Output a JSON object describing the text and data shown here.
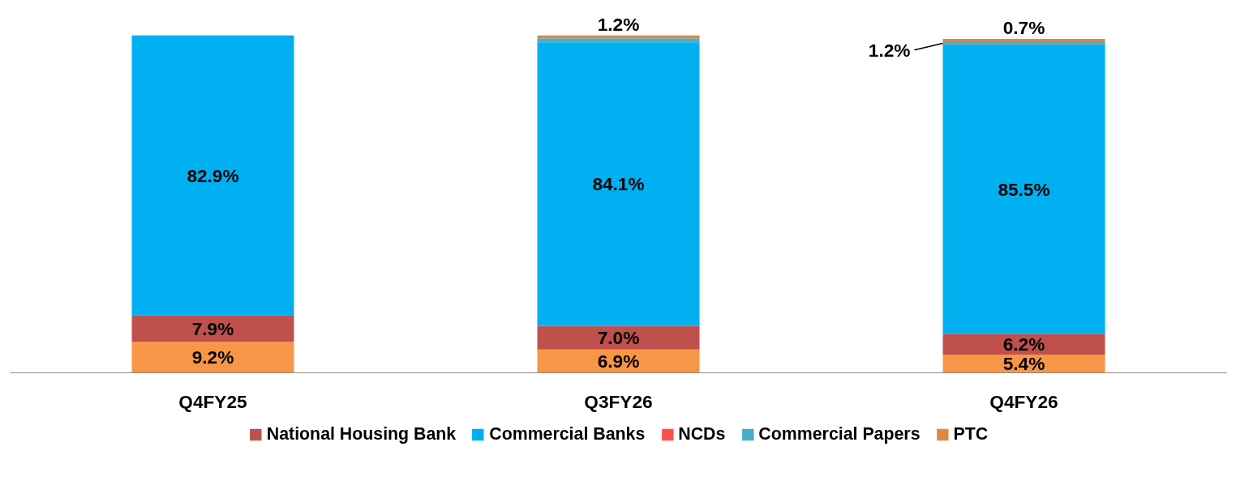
{
  "chart_data": {
    "type": "bar",
    "stacked": true,
    "categories": [
      "Q4FY25",
      "Q3FY26",
      "Q4FY26"
    ],
    "series": [
      {
        "color": "#f79646",
        "values": [
          9.2,
          6.9,
          5.4
        ],
        "value_labels": [
          "9.2%",
          "6.9%",
          "5.4%"
        ]
      },
      {
        "name": "National Housing Bank",
        "color": "#c0504d",
        "values": [
          7.9,
          7.0,
          6.2
        ],
        "value_labels": [
          "7.9%",
          "7.0%",
          "6.2%"
        ]
      },
      {
        "name": "Commercial Banks",
        "color": "#00b0f0",
        "values": [
          82.9,
          84.1,
          85.5
        ],
        "value_labels": [
          "82.9%",
          "84.1%",
          "85.5%"
        ]
      },
      {
        "name": "NCDs",
        "color": "#ff5050",
        "values": [
          null,
          null,
          null
        ],
        "value_labels": [
          null,
          null,
          null
        ]
      },
      {
        "name": "Commercial Papers",
        "color": "#4bacc6",
        "values": [
          null,
          1.2,
          1.2
        ],
        "value_labels": [
          null,
          "1.2%",
          "1.2%"
        ]
      },
      {
        "name": "PTC",
        "color": "#e0883c",
        "values": [
          null,
          0.8,
          0.7
        ],
        "value_labels": [
          null,
          null,
          "0.7%"
        ]
      }
    ],
    "legend": "bottom",
    "tick_labels": "x",
    "grid": false
  }
}
